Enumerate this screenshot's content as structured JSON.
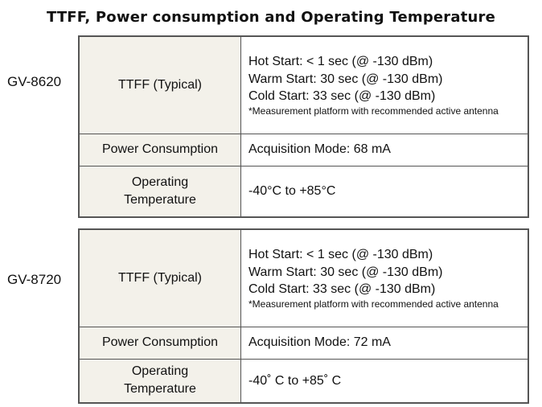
{
  "title": "TTFF, Power consumption and Operating Temperature",
  "models": [
    {
      "name": "GV-8620",
      "ttff_label": "TTFF (Typical)",
      "ttff_lines": [
        "Hot Start: < 1 sec (@ -130 dBm)",
        "Warm Start: 30 sec (@ -130 dBm)",
        "Cold Start: 33 sec (@ -130 dBm)"
      ],
      "ttff_note": "*Measurement platform with recommended active antenna",
      "power_label": "Power Consumption",
      "power_value": "Acquisition Mode: 68 mA",
      "temp_label_1": "Operating",
      "temp_label_2": "Temperature",
      "temp_value": "-40°C to +85°C"
    },
    {
      "name": "GV-8720",
      "ttff_label": "TTFF (Typical)",
      "ttff_lines": [
        "Hot Start: < 1 sec (@ -130 dBm)",
        "Warm Start: 30 sec (@ -130 dBm)",
        "Cold Start: 33 sec (@ -130 dBm)"
      ],
      "ttff_note": "*Measurement platform with recommended active antenna",
      "power_label": "Power Consumption",
      "power_value": "Acquisition Mode: 72 mA",
      "temp_label_1": "Operating",
      "temp_label_2": "Temperature",
      "temp_value": "-40˚ C to +85˚ C"
    }
  ]
}
